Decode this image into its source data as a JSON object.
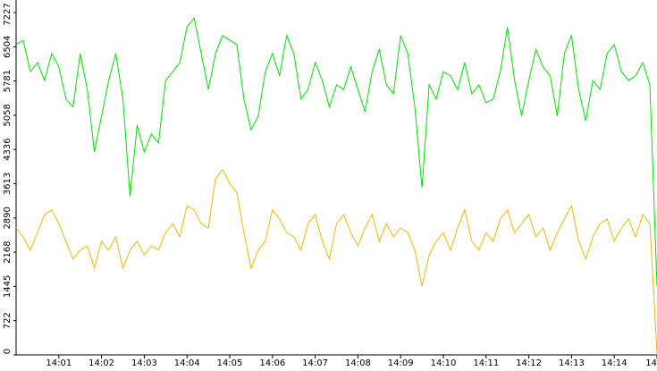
{
  "chart_data": {
    "type": "line",
    "categories": [
      null,
      null,
      null,
      null,
      null,
      null,
      "14:01",
      null,
      null,
      null,
      null,
      null,
      "14:02",
      null,
      null,
      null,
      null,
      null,
      "14:03",
      null,
      null,
      null,
      null,
      null,
      "14:04",
      null,
      null,
      null,
      null,
      null,
      "14:05",
      null,
      null,
      null,
      null,
      null,
      "14:06",
      null,
      null,
      null,
      null,
      null,
      "14:07",
      null,
      null,
      null,
      null,
      null,
      "14:08",
      null,
      null,
      null,
      null,
      null,
      "14:09",
      null,
      null,
      null,
      null,
      null,
      "14:10",
      null,
      null,
      null,
      null,
      null,
      "14:11",
      null,
      null,
      null,
      null,
      null,
      "14:12",
      null,
      null,
      null,
      null,
      null,
      "14:13",
      null,
      null,
      null,
      null,
      null,
      "14:14",
      null,
      null,
      null,
      null,
      null,
      "14"
    ],
    "series": [
      {
        "color": "#00e000",
        "values": [
          6550,
          6640,
          5980,
          6170,
          5790,
          6360,
          6080,
          5400,
          5230,
          6360,
          5600,
          4280,
          5040,
          5790,
          6360,
          5400,
          3340,
          4850,
          4280,
          4660,
          4470,
          5790,
          5980,
          6170,
          6920,
          7110,
          6360,
          5600,
          6360,
          6740,
          6640,
          6550,
          5400,
          4750,
          5040,
          5980,
          6360,
          5890,
          6740,
          6360,
          5400,
          5600,
          6170,
          5790,
          5230,
          5700,
          5600,
          6080,
          5600,
          5130,
          5980,
          6450,
          5700,
          5510,
          6740,
          6360,
          5230,
          3530,
          5700,
          5400,
          5980,
          5890,
          5600,
          6170,
          5510,
          5700,
          5320,
          5400,
          5980,
          6920,
          5790,
          5040,
          5790,
          6450,
          6080,
          5890,
          5040,
          6360,
          6740,
          5600,
          4940,
          5790,
          5600,
          6360,
          6550,
          5980,
          5790,
          5890,
          6170,
          5700,
          1450
        ]
      },
      {
        "color": "#f0b800",
        "values": [
          2680,
          2490,
          2210,
          2580,
          2960,
          3060,
          2770,
          2400,
          2020,
          2210,
          2300,
          1830,
          2400,
          2210,
          2490,
          1830,
          2210,
          2400,
          2110,
          2300,
          2210,
          2580,
          2770,
          2490,
          3150,
          3060,
          2770,
          2680,
          3720,
          3910,
          3620,
          3430,
          2580,
          1830,
          2210,
          2400,
          3060,
          2870,
          2580,
          2490,
          2210,
          2770,
          2960,
          2400,
          2020,
          2770,
          2960,
          2580,
          2300,
          2680,
          2960,
          2400,
          2770,
          2490,
          2680,
          2580,
          2210,
          1450,
          2110,
          2400,
          2580,
          2210,
          2680,
          3060,
          2400,
          2210,
          2580,
          2400,
          2870,
          3060,
          2580,
          2770,
          2960,
          2490,
          2680,
          2210,
          2580,
          2870,
          3150,
          2400,
          2020,
          2490,
          2770,
          2870,
          2400,
          2680,
          2870,
          2490,
          2960,
          2770,
          40
        ]
      }
    ],
    "ylim": [
      0,
      7491
    ],
    "yticks": [
      0,
      722,
      1445,
      2168,
      2890,
      3613,
      4336,
      5058,
      5781,
      6504,
      7227
    ]
  }
}
